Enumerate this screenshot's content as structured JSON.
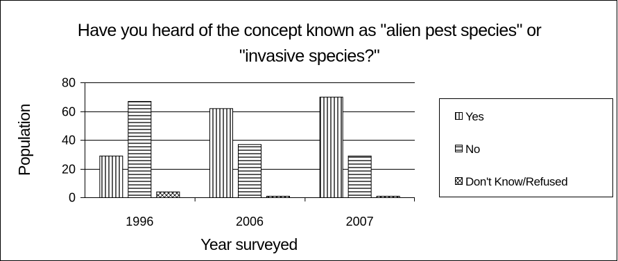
{
  "chart_data": {
    "type": "bar",
    "title": [
      "Have you heard of the concept known as \"alien pest species\" or",
      "\"invasive species?\""
    ],
    "xlabel": "Year surveyed",
    "ylabel": "Population",
    "categories": [
      "1996",
      "2006",
      "2007"
    ],
    "ylim": [
      0,
      80
    ],
    "yticks": [
      0,
      20,
      40,
      60,
      80
    ],
    "grid": true,
    "legend_position": "right",
    "series": [
      {
        "name": "Yes",
        "pattern": "vertical-stripes",
        "values": [
          29,
          62,
          70
        ]
      },
      {
        "name": "No",
        "pattern": "horizontal-stripes",
        "values": [
          67,
          37,
          29
        ]
      },
      {
        "name": "Don't Know/Refused",
        "pattern": "checker",
        "values": [
          4,
          1,
          1
        ]
      }
    ]
  }
}
